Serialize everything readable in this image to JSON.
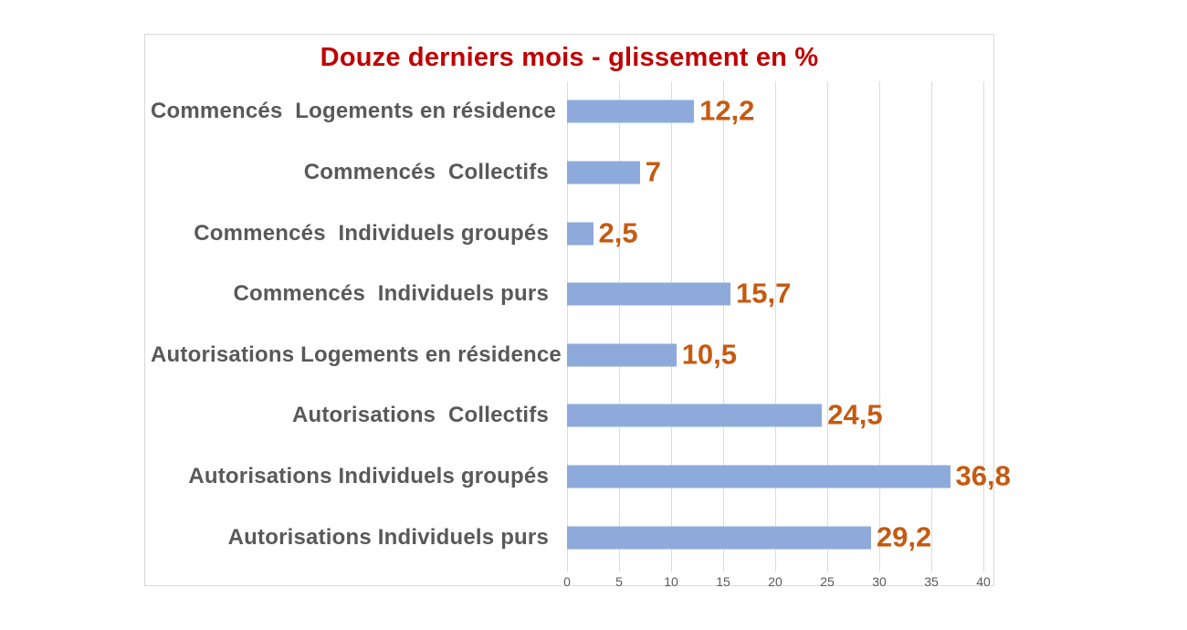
{
  "chart_data": {
    "type": "bar",
    "orientation": "horizontal",
    "title": "Douze derniers mois - glissement en %",
    "xlabel": "",
    "ylabel": "",
    "categories": [
      "Commencés  Logements en résidence",
      "Commencés  Collectifs",
      "Commencés  Individuels groupés",
      "Commencés  Individuels purs",
      "Autorisations Logements en résidence",
      "Autorisations  Collectifs",
      "Autorisations Individuels groupés",
      "Autorisations Individuels purs"
    ],
    "values": [
      12.2,
      7,
      2.5,
      15.7,
      10.5,
      24.5,
      36.8,
      29.2
    ],
    "value_labels": [
      "12,2",
      "7",
      "2,5",
      "15,7",
      "10,5",
      "24,5",
      "36,8",
      "29,2"
    ],
    "xlim": [
      0,
      40
    ],
    "x_ticks": [
      0,
      5,
      10,
      15,
      20,
      25,
      30,
      35,
      40
    ],
    "x_tick_labels": [
      "0",
      "5",
      "10",
      "15",
      "20",
      "25",
      "30",
      "35",
      "40"
    ],
    "grid": true,
    "legend": false,
    "colors": {
      "bar": "#8EAADB",
      "value_label": "#C55A11",
      "title": "#C00000",
      "category_label": "#595959",
      "axis_label": "#595959",
      "gridline": "#DCDCDC",
      "chart_border": "#D9D9D9",
      "background": "#FFFFFF"
    }
  }
}
